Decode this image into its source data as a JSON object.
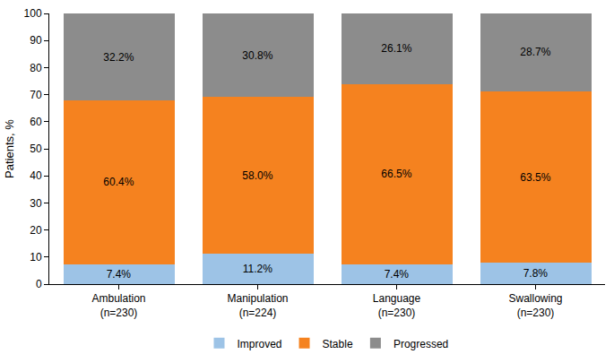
{
  "chart_data": {
    "type": "bar",
    "stacked": true,
    "data_labels": true,
    "grid": false,
    "legend": "bottom",
    "y_label": "Patients, %",
    "categories": [
      "Ambulation\n(n=230)",
      "Manipulation\n(n=224)",
      "Language\n(n=230)",
      "Swallowing\n(n=230)"
    ],
    "ylim": [
      0,
      100
    ],
    "yticks": [
      0,
      10,
      20,
      30,
      40,
      50,
      60,
      70,
      80,
      90,
      100
    ],
    "series": [
      {
        "name": "Improved",
        "color": "#9dc3e6",
        "values": [
          7.4,
          11.2,
          7.4,
          7.8
        ],
        "value_labels": [
          "7.4%",
          "11.2%",
          "7.4%",
          "7.8%"
        ]
      },
      {
        "name": "Stable",
        "color": "#f5821f",
        "values": [
          60.4,
          58.0,
          66.5,
          63.5
        ],
        "value_labels": [
          "60.4%",
          "58.0%",
          "66.5%",
          "63.5%"
        ]
      },
      {
        "name": "Progressed",
        "color": "#8c8c8c",
        "values": [
          32.2,
          30.8,
          26.1,
          28.7
        ],
        "value_labels": [
          "32.2%",
          "30.8%",
          "26.1%",
          "28.7%"
        ]
      }
    ]
  }
}
